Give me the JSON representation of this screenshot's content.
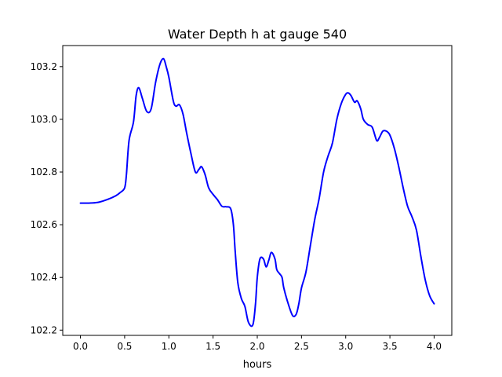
{
  "chart_data": {
    "type": "line",
    "title": "Water Depth h at gauge 540",
    "xlabel": "hours",
    "ylabel": "",
    "xlim": [
      -0.2,
      4.2
    ],
    "ylim": [
      102.18,
      103.28
    ],
    "xticks": [
      0.0,
      0.5,
      1.0,
      1.5,
      2.0,
      2.5,
      3.0,
      3.5,
      4.0
    ],
    "xtick_labels": [
      "0.0",
      "0.5",
      "1.0",
      "1.5",
      "2.0",
      "2.5",
      "3.0",
      "3.5",
      "4.0"
    ],
    "yticks": [
      102.2,
      102.4,
      102.6,
      102.8,
      103.0,
      103.2
    ],
    "ytick_labels": [
      "102.2",
      "102.4",
      "102.6",
      "102.8",
      "103.0",
      "103.2"
    ],
    "grid": false,
    "legend": "none",
    "series": [
      {
        "color": "#0000ff",
        "x": [
          0.0,
          0.1,
          0.2,
          0.3,
          0.4,
          0.45,
          0.5,
          0.52,
          0.55,
          0.6,
          0.63,
          0.66,
          0.7,
          0.75,
          0.8,
          0.85,
          0.9,
          0.94,
          0.97,
          1.0,
          1.05,
          1.08,
          1.12,
          1.16,
          1.2,
          1.25,
          1.3,
          1.34,
          1.37,
          1.41,
          1.45,
          1.5,
          1.55,
          1.6,
          1.65,
          1.7,
          1.73,
          1.75,
          1.78,
          1.82,
          1.86,
          1.9,
          1.95,
          1.98,
          2.0,
          2.03,
          2.07,
          2.1,
          2.13,
          2.16,
          2.2,
          2.22,
          2.25,
          2.28,
          2.3,
          2.35,
          2.4,
          2.44,
          2.47,
          2.5,
          2.55,
          2.6,
          2.65,
          2.7,
          2.75,
          2.8,
          2.85,
          2.9,
          2.95,
          3.0,
          3.03,
          3.06,
          3.1,
          3.13,
          3.17,
          3.2,
          3.25,
          3.3,
          3.35,
          3.38,
          3.42,
          3.46,
          3.5,
          3.55,
          3.6,
          3.65,
          3.7,
          3.75,
          3.8,
          3.85,
          3.9,
          3.95,
          4.0
        ],
        "y": [
          102.682,
          102.682,
          102.685,
          102.695,
          102.71,
          102.722,
          102.74,
          102.79,
          102.92,
          102.99,
          103.09,
          103.12,
          103.08,
          103.03,
          103.04,
          103.14,
          103.21,
          103.23,
          103.2,
          103.16,
          103.07,
          103.05,
          103.055,
          103.02,
          102.95,
          102.87,
          102.8,
          102.81,
          102.82,
          102.79,
          102.74,
          102.715,
          102.695,
          102.67,
          102.668,
          102.66,
          102.6,
          102.5,
          102.38,
          102.32,
          102.29,
          102.23,
          102.22,
          102.3,
          102.4,
          102.47,
          102.47,
          102.44,
          102.465,
          102.495,
          102.47,
          102.43,
          102.415,
          102.4,
          102.36,
          102.3,
          102.255,
          102.26,
          102.3,
          102.36,
          102.42,
          102.52,
          102.62,
          102.7,
          102.8,
          102.86,
          102.91,
          103.0,
          103.06,
          103.095,
          103.1,
          103.09,
          103.065,
          103.07,
          103.04,
          103.0,
          102.98,
          102.97,
          102.92,
          102.93,
          102.955,
          102.955,
          102.94,
          102.89,
          102.82,
          102.74,
          102.67,
          102.63,
          102.58,
          102.48,
          102.39,
          102.33,
          102.3
        ]
      }
    ]
  }
}
